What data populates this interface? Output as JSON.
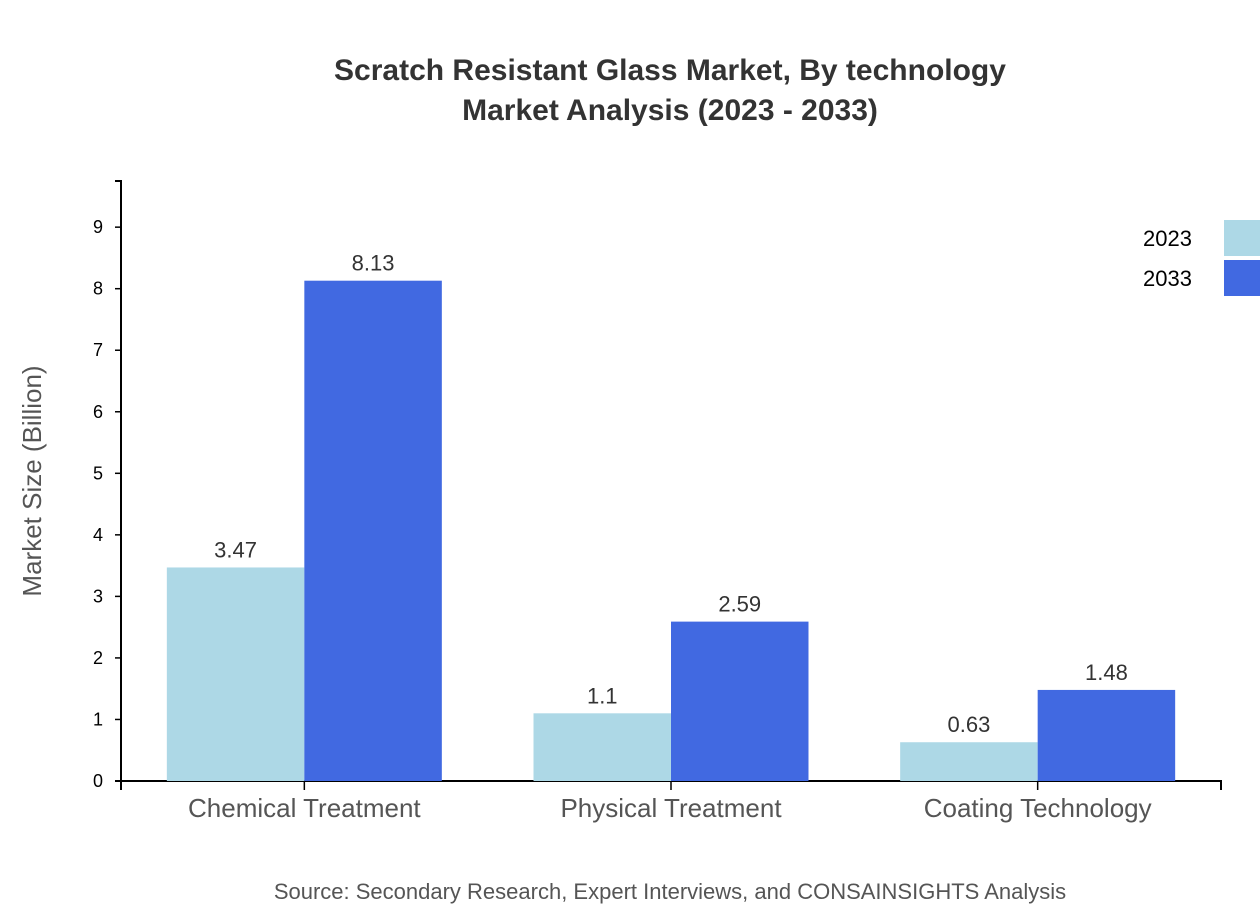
{
  "chart_data": {
    "type": "bar",
    "title": "Scratch Resistant Glass Market, By technology",
    "subtitle": "Market Analysis (2023 - 2033)",
    "xlabel": "",
    "ylabel": "Market Size (Billion)",
    "ylim": [
      0,
      9.75
    ],
    "yticks": [
      "0",
      "1",
      "2",
      "3",
      "4",
      "5",
      "6",
      "7",
      "8",
      "9"
    ],
    "categories": [
      "Chemical Treatment",
      "Physical Treatment",
      "Coating Technology"
    ],
    "series": [
      {
        "name": "2023",
        "color": "#add8e6",
        "values": [
          3.47,
          1.1,
          0.63
        ],
        "labels": [
          "3.47",
          "1.1",
          "0.63"
        ]
      },
      {
        "name": "2033",
        "color": "#4169e1",
        "values": [
          8.13,
          2.59,
          1.48
        ],
        "labels": [
          "8.13",
          "2.59",
          "1.48"
        ]
      }
    ],
    "grid": false,
    "legend": "top-right",
    "source": "Source: Secondary Research, Expert Interviews, and CONSAINSIGHTS Analysis"
  }
}
